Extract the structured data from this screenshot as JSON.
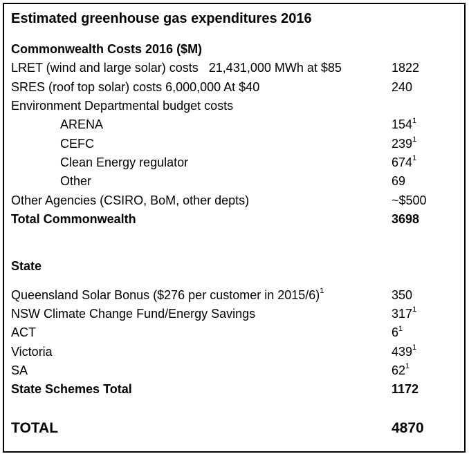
{
  "title": "Estimated greenhouse gas expenditures 2016",
  "table": {
    "rows": [
      {
        "label": "Commonwealth Costs 2016 ($M)",
        "bold": true
      },
      {
        "label": "LRET (wind and large solar) costs   21,431,000 MWh at $85",
        "value": "1822"
      },
      {
        "label": "SRES (roof top solar) costs 6,000,000 At $40",
        "value": "240"
      },
      {
        "label": "Environment Departmental budget costs"
      },
      {
        "label": "ARENA",
        "indent": true,
        "value": "154",
        "value_sup": "1"
      },
      {
        "label": "CEFC",
        "indent": true,
        "value": "239",
        "value_sup": "1"
      },
      {
        "label": "Clean Energy regulator",
        "indent": true,
        "value": "674",
        "value_sup": "1"
      },
      {
        "label": "Other",
        "indent": true,
        "value": "69"
      },
      {
        "label": "Other Agencies (CSIRO, BoM, other depts)",
        "value": "~$500"
      },
      {
        "label": "Total Commonwealth",
        "bold": true,
        "value": "3698"
      },
      {
        "blank": true
      },
      {
        "blank": true,
        "small": true
      },
      {
        "label": "State",
        "bold": true
      },
      {
        "blank": true,
        "small": true
      },
      {
        "label": "Queensland Solar Bonus ($276 per customer in 2015/6)",
        "label_sup": "1",
        "value": "350"
      },
      {
        "label": "NSW Climate Change Fund/Energy Savings",
        "value": "317",
        "value_sup": "1"
      },
      {
        "label": "ACT",
        "value": "6",
        "value_sup": "1"
      },
      {
        "label": "Victoria",
        "value": "439",
        "value_sup": "1"
      },
      {
        "label": "SA",
        "value": "62",
        "value_sup": "1"
      },
      {
        "label": "State Schemes Total",
        "bold": true,
        "value": "1172"
      },
      {
        "blank": true
      },
      {
        "label": "TOTAL",
        "bold": true,
        "large": true,
        "value": "4870"
      }
    ]
  },
  "colors": {
    "text": "#000000",
    "background": "#ffffff",
    "border": "#000000"
  }
}
